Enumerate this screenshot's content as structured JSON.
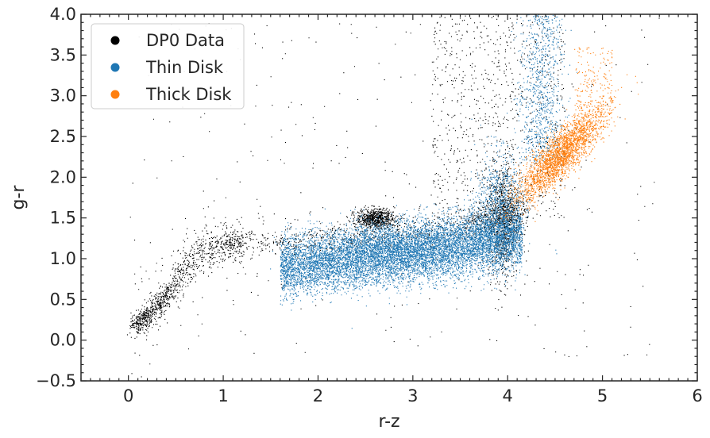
{
  "chart_data": {
    "type": "scatter",
    "xlabel": "r-z",
    "ylabel": "g-r",
    "xlim": [
      -0.5,
      6
    ],
    "ylim": [
      -0.5,
      4.0
    ],
    "x_ticks": [
      "0",
      "1",
      "2",
      "3",
      "4",
      "5",
      "6"
    ],
    "y_ticks": [
      "−0.5",
      "0.0",
      "0.5",
      "1.0",
      "1.5",
      "2.0",
      "2.5",
      "3.0",
      "3.5",
      "4.0"
    ],
    "legend_position": "top-left",
    "series": [
      {
        "name": "DP0 Data",
        "color": "#000000",
        "point_count": 13000,
        "stellar_locus": [
          [
            0.05,
            0.2
          ],
          [
            0.2,
            0.28
          ],
          [
            0.4,
            0.55
          ],
          [
            0.6,
            0.9
          ],
          [
            0.8,
            1.12
          ],
          [
            1.0,
            1.2
          ],
          [
            1.5,
            1.2
          ],
          [
            2.0,
            1.22
          ],
          [
            2.5,
            1.3
          ],
          [
            3.0,
            1.35
          ],
          [
            3.5,
            1.4
          ],
          [
            3.8,
            1.5
          ],
          [
            4.05,
            1.6
          ]
        ]
      },
      {
        "name": "Thin Disk",
        "color": "#1f77b4",
        "point_count": 8500,
        "center": [
          2.85,
          1.05
        ],
        "extent": {
          "x": [
            1.6,
            4.2
          ],
          "y": [
            0.5,
            1.9
          ]
        },
        "plume_center": [
          4.35,
          3.2
        ]
      },
      {
        "name": "Thick Disk",
        "color": "#ff7f0e",
        "point_count": 2600,
        "center": [
          4.55,
          2.28
        ],
        "extent": {
          "x": [
            4.1,
            5.3
          ],
          "y": [
            1.8,
            2.9
          ]
        }
      }
    ]
  }
}
